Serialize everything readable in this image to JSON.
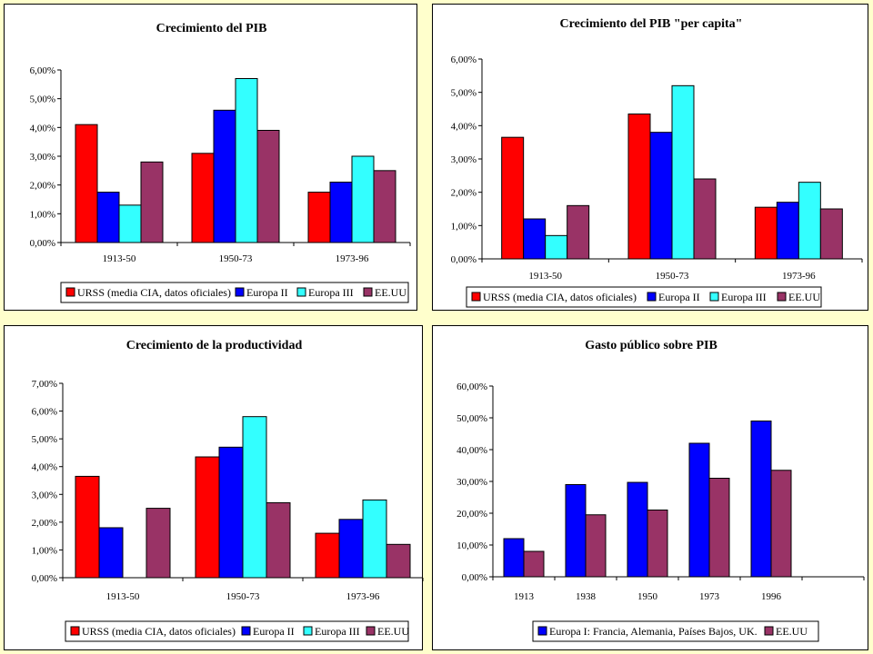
{
  "colors": {
    "urss": "#ff0000",
    "europa2": "#0000ff",
    "europa3": "#33ffff",
    "eeuu": "#993366"
  },
  "chart_data": [
    {
      "type": "bar",
      "title": "Crecimiento del PIB",
      "categories": [
        "1913-50",
        "1950-73",
        "1973-96"
      ],
      "ylim": [
        0,
        6
      ],
      "yticks": [
        "0,00%",
        "1,00%",
        "2,00%",
        "3,00%",
        "4,00%",
        "5,00%",
        "6,00%"
      ],
      "legend_position": "bottom",
      "series": [
        {
          "name": "URSS (media CIA, datos oficiales)",
          "color": "#ff0000",
          "values": [
            4.1,
            3.1,
            1.75
          ]
        },
        {
          "name": "Europa II",
          "color": "#0000ff",
          "values": [
            1.75,
            4.6,
            2.1
          ]
        },
        {
          "name": "Europa III",
          "color": "#33ffff",
          "values": [
            1.3,
            5.7,
            3.0
          ]
        },
        {
          "name": "EE.UU",
          "color": "#993366",
          "values": [
            2.8,
            3.9,
            2.5
          ]
        }
      ]
    },
    {
      "type": "bar",
      "title": "Crecimiento del PIB \"per capita\"",
      "categories": [
        "1913-50",
        "1950-73",
        "1973-96"
      ],
      "ylim": [
        0,
        6
      ],
      "yticks": [
        "0,00%",
        "1,00%",
        "2,00%",
        "3,00%",
        "4,00%",
        "5,00%",
        "6,00%"
      ],
      "legend_position": "bottom",
      "series": [
        {
          "name": "URSS (media CIA, datos oficiales)",
          "color": "#ff0000",
          "values": [
            3.65,
            4.35,
            1.55
          ]
        },
        {
          "name": "Europa II",
          "color": "#0000ff",
          "values": [
            1.2,
            3.8,
            1.7
          ]
        },
        {
          "name": "Europa III",
          "color": "#33ffff",
          "values": [
            0.7,
            5.2,
            2.3
          ]
        },
        {
          "name": "EE.UU",
          "color": "#993366",
          "values": [
            1.6,
            2.4,
            1.5
          ]
        }
      ]
    },
    {
      "type": "bar",
      "title": "Crecimiento de la productividad",
      "categories": [
        "1913-50",
        "1950-73",
        "1973-96"
      ],
      "ylim": [
        0,
        7
      ],
      "yticks": [
        "0,00%",
        "1,00%",
        "2,00%",
        "3,00%",
        "4,00%",
        "5,00%",
        "6,00%",
        "7,00%"
      ],
      "legend_position": "bottom",
      "series": [
        {
          "name": "URSS (media CIA, datos oficiales)",
          "color": "#ff0000",
          "values": [
            3.65,
            4.35,
            1.6
          ]
        },
        {
          "name": "Europa II",
          "color": "#0000ff",
          "values": [
            1.8,
            4.7,
            2.1
          ]
        },
        {
          "name": "Europa III",
          "color": "#33ffff",
          "values": [
            0,
            5.8,
            2.8
          ]
        },
        {
          "name": "EE.UU",
          "color": "#993366",
          "values": [
            2.5,
            2.7,
            1.2
          ]
        }
      ]
    },
    {
      "type": "bar",
      "title": "Gasto público sobre PIB",
      "categories": [
        "1913",
        "1938",
        "1950",
        "1973",
        "1996",
        ""
      ],
      "ylim": [
        0,
        60
      ],
      "yticks": [
        "0,00%",
        "10,00%",
        "20,00%",
        "30,00%",
        "40,00%",
        "50,00%",
        "60,00%"
      ],
      "legend_position": "bottom",
      "series": [
        {
          "name": "Europa I: Francia, Alemania, Países Bajos, UK.",
          "color": "#0000ff",
          "values": [
            12,
            29,
            29.7,
            42,
            49,
            null
          ]
        },
        {
          "name": "EE.UU",
          "color": "#993366",
          "values": [
            8,
            19.5,
            21,
            31,
            33.5,
            null
          ]
        }
      ]
    }
  ]
}
